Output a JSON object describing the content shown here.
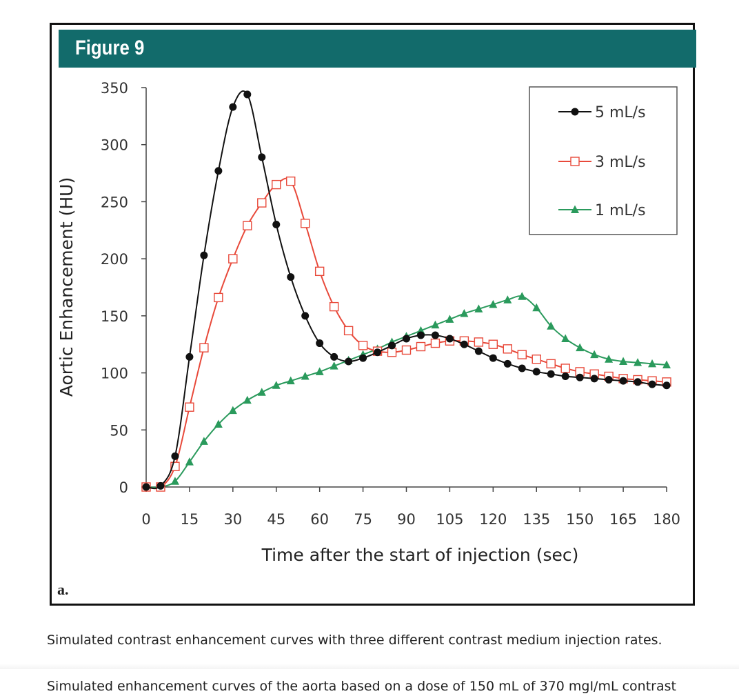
{
  "figure": {
    "title": "Figure 9",
    "panel_label": "a."
  },
  "captions": {
    "short": "Simulated contrast enhancement curves with three different contrast medium injection rates.",
    "long": "Simulated enhancement curves of the aorta based on a dose of 150 mL of 370 mgI/mL contrast"
  },
  "colors": {
    "header": "#126b6b",
    "series_5": "#111111",
    "series_3": "#e8493a",
    "series_1": "#2a9a5c"
  },
  "chart_data": {
    "type": "line",
    "title": "",
    "xlabel": "Time after the start of injection (sec)",
    "ylabel": "Aortic Enhancement (HU)",
    "xlim": [
      0,
      180
    ],
    "ylim": [
      0,
      350
    ],
    "xticks": [
      0,
      15,
      30,
      45,
      60,
      75,
      90,
      105,
      120,
      135,
      150,
      165,
      180
    ],
    "yticks": [
      0,
      50,
      100,
      150,
      200,
      250,
      300,
      350
    ],
    "legend_position": "top-right",
    "series": [
      {
        "name": "5 mL/s",
        "marker": "circle",
        "color": "#111111",
        "x": [
          0,
          5,
          10,
          15,
          20,
          25,
          30,
          35,
          40,
          45,
          50,
          55,
          60,
          65,
          70,
          75,
          80,
          85,
          90,
          95,
          100,
          105,
          110,
          115,
          120,
          125,
          130,
          135,
          140,
          145,
          150,
          155,
          160,
          165,
          170,
          175,
          180
        ],
        "y": [
          0,
          1,
          27,
          114,
          203,
          277,
          333,
          344,
          289,
          230,
          184,
          150,
          126,
          114,
          110,
          113,
          118,
          124,
          130,
          133,
          133,
          130,
          125,
          119,
          113,
          108,
          104,
          101,
          99,
          97,
          96,
          95,
          94,
          93,
          92,
          90,
          89
        ]
      },
      {
        "name": "3 mL/s",
        "marker": "square",
        "color": "#e8493a",
        "x": [
          0,
          5,
          10,
          15,
          20,
          25,
          30,
          35,
          40,
          45,
          50,
          55,
          60,
          65,
          70,
          75,
          80,
          85,
          90,
          95,
          100,
          105,
          110,
          115,
          120,
          125,
          130,
          135,
          140,
          145,
          150,
          155,
          160,
          165,
          170,
          175,
          180
        ],
        "y": [
          0,
          0,
          18,
          70,
          122,
          166,
          200,
          229,
          249,
          265,
          268,
          231,
          189,
          158,
          137,
          124,
          119,
          118,
          120,
          123,
          126,
          128,
          128,
          127,
          125,
          121,
          116,
          112,
          108,
          104,
          101,
          99,
          97,
          95,
          94,
          93,
          92
        ]
      },
      {
        "name": "1 mL/s",
        "marker": "triangle",
        "color": "#2a9a5c",
        "x": [
          0,
          5,
          10,
          15,
          20,
          25,
          30,
          35,
          40,
          45,
          50,
          55,
          60,
          65,
          70,
          75,
          80,
          85,
          90,
          95,
          100,
          105,
          110,
          115,
          120,
          125,
          130,
          135,
          140,
          145,
          150,
          155,
          160,
          165,
          170,
          175,
          180
        ],
        "y": [
          0,
          0,
          5,
          22,
          40,
          55,
          67,
          76,
          83,
          89,
          93,
          97,
          101,
          106,
          111,
          116,
          121,
          127,
          132,
          137,
          142,
          147,
          152,
          156,
          160,
          164,
          167,
          157,
          141,
          130,
          122,
          116,
          112,
          110,
          109,
          108,
          107
        ]
      }
    ]
  }
}
